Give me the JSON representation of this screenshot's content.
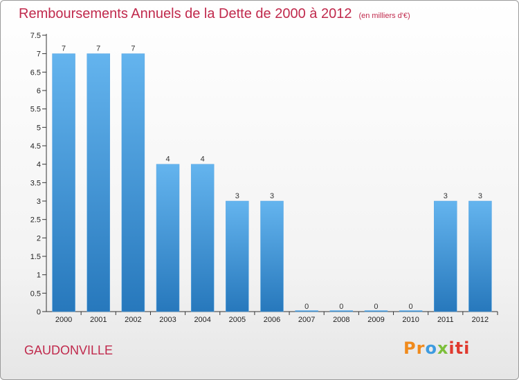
{
  "title": "Remboursements Annuels de la Dette de 2000 à 2012",
  "subtitle": "(en milliers d'€)",
  "commune": "GAUDONVILLE",
  "logo": {
    "p1": "Pr",
    "p2": "o",
    "p3": "x",
    "p4": "iti"
  },
  "colors": {
    "bar_light": "#64b4ee",
    "bar_dark": "#2778bc",
    "title": "#c0294c"
  },
  "chart_data": {
    "type": "bar",
    "title": "Remboursements Annuels de la Dette de 2000 à 2012",
    "subtitle": "(en milliers d'€)",
    "xlabel": "",
    "ylabel": "",
    "categories": [
      "2000",
      "2001",
      "2002",
      "2003",
      "2004",
      "2005",
      "2006",
      "2007",
      "2008",
      "2009",
      "2010",
      "2011",
      "2012"
    ],
    "values": [
      7,
      7,
      7,
      4,
      4,
      3,
      3,
      0,
      0,
      0,
      0,
      3,
      3
    ],
    "value_labels": [
      "7",
      "7",
      "7",
      "4",
      "4",
      "3",
      "3",
      "0",
      "0",
      "0",
      "0",
      "3",
      "3"
    ],
    "ylim": [
      0,
      7.5
    ],
    "yticks": [
      {
        "value": 0,
        "label": "0"
      },
      {
        "value": 0.5,
        "label": "0.5"
      },
      {
        "value": 1,
        "label": "1"
      },
      {
        "value": 1.5,
        "label": "1.5"
      },
      {
        "value": 2,
        "label": "2"
      },
      {
        "value": 2.5,
        "label": "2.5"
      },
      {
        "value": 3,
        "label": "3"
      },
      {
        "value": 3.5,
        "label": "3.5"
      },
      {
        "value": 4,
        "label": "4"
      },
      {
        "value": 4.5,
        "label": "4.5"
      },
      {
        "value": 5,
        "label": "5"
      },
      {
        "value": 5.5,
        "label": "5.5"
      },
      {
        "value": 6,
        "label": "6"
      },
      {
        "value": 6.5,
        "label": "6.5"
      },
      {
        "value": 7,
        "label": "7"
      },
      {
        "value": 7.5,
        "label": "7.5"
      }
    ],
    "grid": false,
    "legend": "none"
  }
}
